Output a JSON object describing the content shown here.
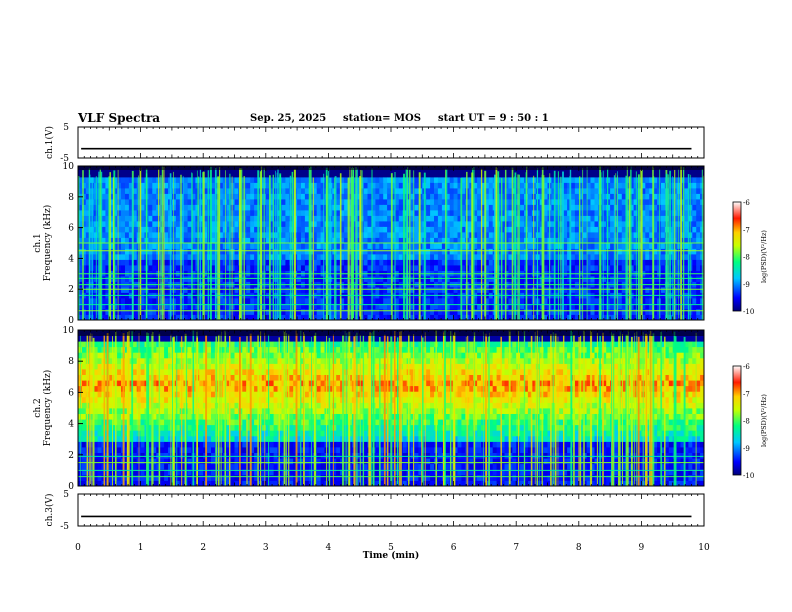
{
  "header": {
    "title": "VLF Spectra",
    "date": "Sep. 25, 2025",
    "station": "station= MOS",
    "start": "start  UT  =   9  : 50 : 1"
  },
  "chart_data": [
    {
      "type": "line",
      "name": "ch1-waveform",
      "ylabel": "ch.1(V)",
      "ylim": [
        -5,
        5
      ],
      "yticks": [
        "5",
        "-5"
      ],
      "xlim": [
        0,
        10
      ],
      "level": -2
    },
    {
      "type": "heatmap",
      "name": "ch1-spectrogram",
      "ylabel_line1": "ch.1",
      "ylabel_line2": "Frequency (kHz)",
      "ylim": [
        0,
        10
      ],
      "yticks": [
        "0",
        "2",
        "4",
        "6",
        "8",
        "10"
      ],
      "xlim": [
        0,
        10
      ],
      "colorbar": {
        "label": "log(PSD)(V²/Hz)",
        "ticks": [
          "-6",
          "-7",
          "-8",
          "-9",
          "-10"
        ],
        "range": [
          -10,
          -6
        ]
      },
      "lines_khz": [
        0.6,
        1.0,
        1.6,
        2.0,
        2.3,
        2.7,
        3.0,
        4.5,
        5.0
      ],
      "band_khz": [
        0,
        10
      ]
    },
    {
      "type": "heatmap",
      "name": "ch2-spectrogram",
      "ylabel_line1": "ch.2",
      "ylabel_line2": "Frequency (kHz)",
      "ylim": [
        0,
        10
      ],
      "yticks": [
        "0",
        "2",
        "4",
        "6",
        "8",
        "10"
      ],
      "xlim": [
        0,
        10
      ],
      "colorbar": {
        "label": "log(PSD)(V²/Hz)",
        "ticks": [
          "-6",
          "-7",
          "-8",
          "-9",
          "-10"
        ],
        "range": [
          -10,
          -6
        ]
      },
      "lines_khz": [
        0.6,
        1.0,
        1.5,
        1.9
      ],
      "band_khz": [
        4,
        9
      ]
    },
    {
      "type": "line",
      "name": "ch3-waveform",
      "ylabel": "ch.3(V)",
      "ylim": [
        -5,
        5
      ],
      "yticks": [
        "5",
        "-5"
      ],
      "xlim": [
        0,
        10
      ],
      "level": -2
    }
  ],
  "xaxis": {
    "label": "Time (min)",
    "ticks": [
      "0",
      "1",
      "2",
      "3",
      "4",
      "5",
      "6",
      "7",
      "8",
      "9",
      "10"
    ],
    "xlim": [
      0,
      10
    ]
  }
}
